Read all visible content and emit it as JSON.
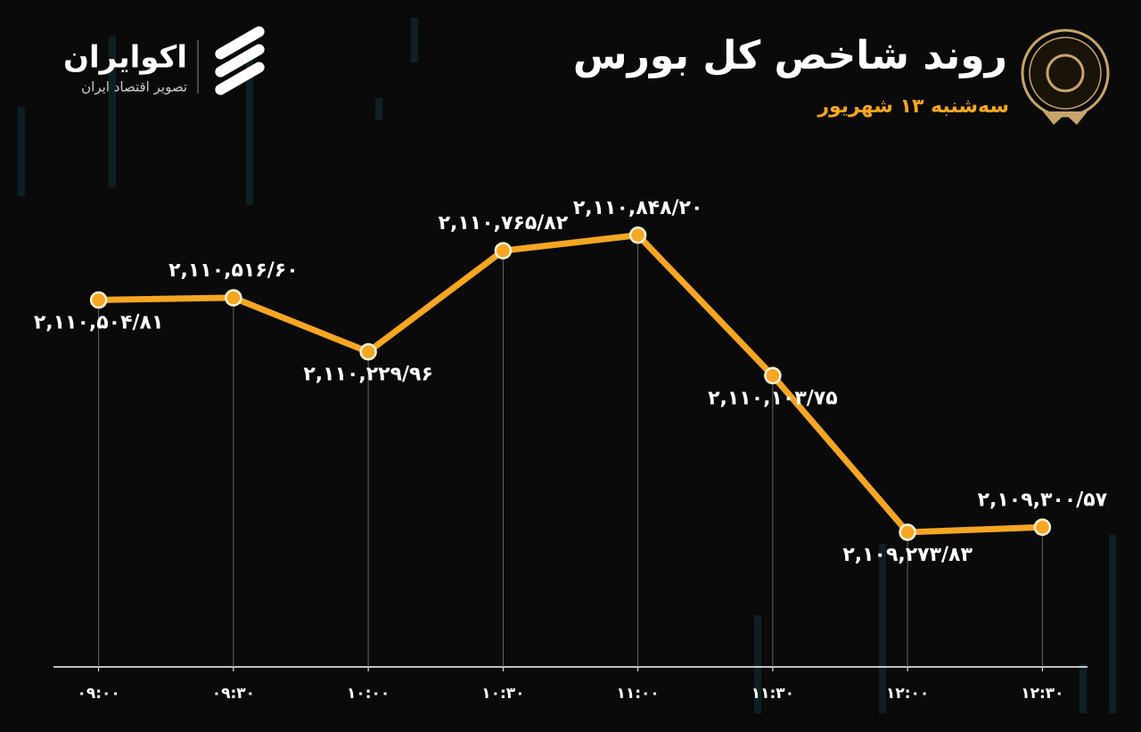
{
  "chart_data": {
    "type": "line",
    "title": "روند شاخص کل بورس",
    "subtitle": "سه‌شنبه ۱۳ شهریور",
    "brand": "اکوایران",
    "brand_tagline": "تصویر اقتصاد ایران",
    "categories": [
      "۰۹:۰۰",
      "۰۹:۳۰",
      "۱۰:۰۰",
      "۱۰:۳۰",
      "۱۱:۰۰",
      "۱۱:۳۰",
      "۱۲:۰۰",
      "۱۲:۳۰"
    ],
    "values": [
      2110504.81,
      2110516.6,
      2110229.96,
      2110765.82,
      2110848.2,
      2110103.75,
      2109273.83,
      2109300.57
    ],
    "value_labels": [
      "۲,۱۱۰,۵۰۴/۸۱",
      "۲,۱۱۰,۵۱۶/۶۰",
      "۲,۱۱۰,۲۲۹/۹۶",
      "۲,۱۱۰,۷۶۵/۸۲",
      "۲,۱۱۰,۸۴۸/۲۰",
      "۲,۱۱۰,۱۰۳/۷۵",
      "۲,۱۰۹,۲۷۳/۸۳",
      "۲,۱۰۹,۳۰۰/۵۷"
    ],
    "color": "#f5a623",
    "ylim": [
      2108560,
      2111400
    ]
  }
}
